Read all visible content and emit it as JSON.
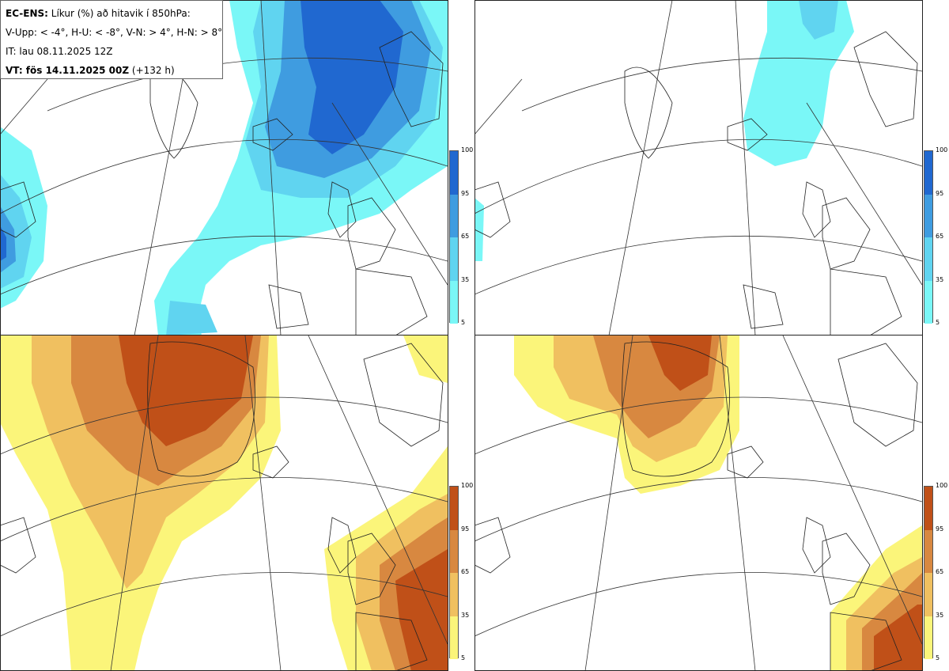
{
  "header": {
    "line1_bold": "EC-ENS:",
    "line1_rest": " Líkur (%) að hitavik í 850hPa:",
    "line2": "V-Upp: < -4°, H-U: < -8°, V-N: > 4°, H-N: > 8°",
    "line3": "IT: lau 08.11.2025 12Z",
    "line4_bold": "VT: fös 14.11.2025 00Z",
    "line4_rest": " (+132 h)"
  },
  "colorbar_ticks": [
    "100",
    "95",
    "65",
    "35",
    "5"
  ],
  "colors": {
    "cold": [
      "#7af7f7",
      "#60d4f0",
      "#3f9ce0",
      "#2068d0"
    ],
    "warm": [
      "#fbf57a",
      "#f0c060",
      "#d88840",
      "#c05018"
    ],
    "coast": "#222222",
    "grid": "#333333"
  },
  "panels": [
    {
      "name": "V-Upp",
      "scheme": "cold"
    },
    {
      "name": "H-U",
      "scheme": "cold"
    },
    {
      "name": "V-N",
      "scheme": "warm"
    },
    {
      "name": "H-N",
      "scheme": "warm"
    }
  ]
}
